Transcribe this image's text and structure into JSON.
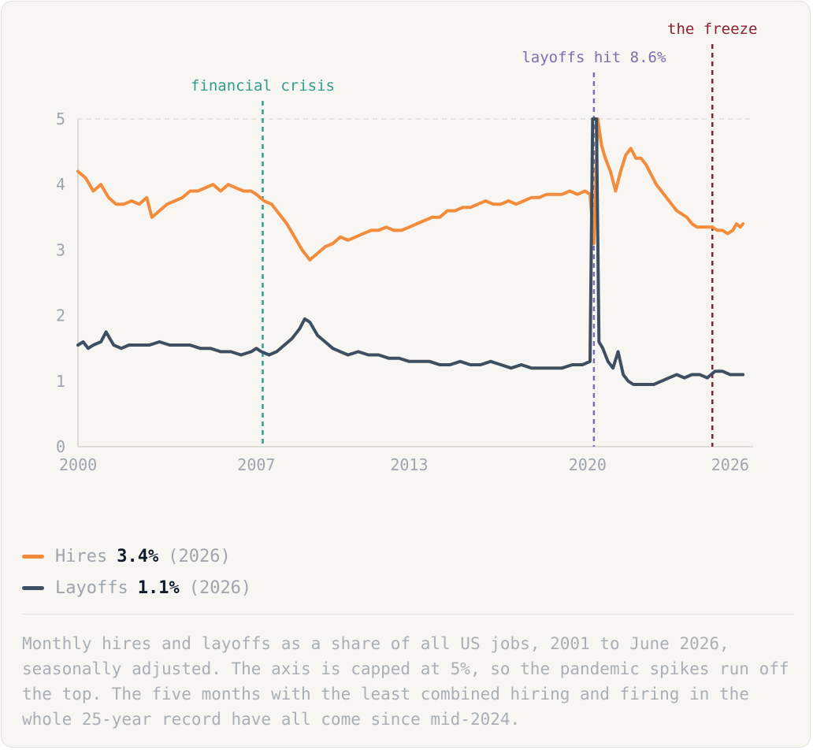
{
  "colors": {
    "hires": "#f38b3c",
    "layoffs": "#3d4f61",
    "financial_crisis": "#2e9e8b",
    "pandemic": "#7b6fb0",
    "freeze": "#8b2131",
    "axis_text": "#9ea5ae",
    "grid": "#dedbd4"
  },
  "legend": {
    "hires": {
      "name": "Hires",
      "value": "3.4%",
      "suffix": "(2026)"
    },
    "layoffs": {
      "name": "Layoffs",
      "value": "1.1%",
      "suffix": "(2026)"
    }
  },
  "caption": "Monthly hires and layoffs as a share of all US jobs, 2001 to June 2026, seasonally adjusted. The axis is capped at 5%, so the pandemic spikes run off the top. The five months with the least combined hiring and firing in the whole 25-year record have all come since mid-2024.",
  "chart_data": {
    "type": "line",
    "title": "",
    "xlabel": "",
    "ylabel": "",
    "xlim": [
      2000,
      2026.5
    ],
    "ylim": [
      0,
      5
    ],
    "x_ticks": [
      2000,
      2007,
      2013,
      2020,
      2026
    ],
    "y_ticks": [
      0,
      1,
      2,
      3,
      4,
      5
    ],
    "grid": "top line only",
    "annotations": [
      {
        "label": "financial crisis",
        "x": 2007.25,
        "color_key": "financial_crisis"
      },
      {
        "label": "layoffs hit 8.6%",
        "x": 2020.25,
        "color_key": "pandemic"
      },
      {
        "label": "the freeze",
        "x": 2024.9,
        "color_key": "freeze"
      }
    ],
    "series": [
      {
        "name": "Hires",
        "color_key": "hires",
        "points": [
          [
            2000.0,
            4.2
          ],
          [
            2000.3,
            4.1
          ],
          [
            2000.6,
            3.9
          ],
          [
            2000.9,
            4.0
          ],
          [
            2001.2,
            3.8
          ],
          [
            2001.5,
            3.7
          ],
          [
            2001.8,
            3.7
          ],
          [
            2002.1,
            3.75
          ],
          [
            2002.4,
            3.7
          ],
          [
            2002.7,
            3.8
          ],
          [
            2002.9,
            3.5
          ],
          [
            2003.2,
            3.6
          ],
          [
            2003.5,
            3.7
          ],
          [
            2003.8,
            3.75
          ],
          [
            2004.1,
            3.8
          ],
          [
            2004.4,
            3.9
          ],
          [
            2004.7,
            3.9
          ],
          [
            2005.0,
            3.95
          ],
          [
            2005.3,
            4.0
          ],
          [
            2005.6,
            3.9
          ],
          [
            2005.9,
            4.0
          ],
          [
            2006.2,
            3.95
          ],
          [
            2006.5,
            3.9
          ],
          [
            2006.8,
            3.9
          ],
          [
            2007.0,
            3.85
          ],
          [
            2007.3,
            3.75
          ],
          [
            2007.6,
            3.7
          ],
          [
            2007.9,
            3.55
          ],
          [
            2008.2,
            3.4
          ],
          [
            2008.5,
            3.2
          ],
          [
            2008.8,
            3.0
          ],
          [
            2009.1,
            2.85
          ],
          [
            2009.4,
            2.95
          ],
          [
            2009.7,
            3.05
          ],
          [
            2010.0,
            3.1
          ],
          [
            2010.3,
            3.2
          ],
          [
            2010.6,
            3.15
          ],
          [
            2010.9,
            3.2
          ],
          [
            2011.2,
            3.25
          ],
          [
            2011.5,
            3.3
          ],
          [
            2011.8,
            3.3
          ],
          [
            2012.1,
            3.35
          ],
          [
            2012.4,
            3.3
          ],
          [
            2012.7,
            3.3
          ],
          [
            2013.0,
            3.35
          ],
          [
            2013.3,
            3.4
          ],
          [
            2013.6,
            3.45
          ],
          [
            2013.9,
            3.5
          ],
          [
            2014.2,
            3.5
          ],
          [
            2014.5,
            3.6
          ],
          [
            2014.8,
            3.6
          ],
          [
            2015.1,
            3.65
          ],
          [
            2015.4,
            3.65
          ],
          [
            2015.7,
            3.7
          ],
          [
            2016.0,
            3.75
          ],
          [
            2016.3,
            3.7
          ],
          [
            2016.6,
            3.7
          ],
          [
            2016.9,
            3.75
          ],
          [
            2017.2,
            3.7
          ],
          [
            2017.5,
            3.75
          ],
          [
            2017.8,
            3.8
          ],
          [
            2018.1,
            3.8
          ],
          [
            2018.4,
            3.85
          ],
          [
            2018.7,
            3.85
          ],
          [
            2019.0,
            3.85
          ],
          [
            2019.3,
            3.9
          ],
          [
            2019.6,
            3.85
          ],
          [
            2019.9,
            3.9
          ],
          [
            2020.1,
            3.85
          ],
          [
            2020.25,
            3.1
          ],
          [
            2020.4,
            5.0
          ],
          [
            2020.55,
            4.6
          ],
          [
            2020.7,
            4.4
          ],
          [
            2020.9,
            4.2
          ],
          [
            2021.1,
            3.9
          ],
          [
            2021.3,
            4.2
          ],
          [
            2021.5,
            4.45
          ],
          [
            2021.7,
            4.55
          ],
          [
            2021.9,
            4.4
          ],
          [
            2022.1,
            4.4
          ],
          [
            2022.3,
            4.3
          ],
          [
            2022.5,
            4.15
          ],
          [
            2022.7,
            4.0
          ],
          [
            2022.9,
            3.9
          ],
          [
            2023.1,
            3.8
          ],
          [
            2023.3,
            3.7
          ],
          [
            2023.5,
            3.6
          ],
          [
            2023.7,
            3.55
          ],
          [
            2023.9,
            3.5
          ],
          [
            2024.1,
            3.4
          ],
          [
            2024.3,
            3.35
          ],
          [
            2024.5,
            3.35
          ],
          [
            2024.7,
            3.35
          ],
          [
            2024.9,
            3.35
          ],
          [
            2025.1,
            3.3
          ],
          [
            2025.3,
            3.3
          ],
          [
            2025.5,
            3.25
          ],
          [
            2025.7,
            3.3
          ],
          [
            2025.85,
            3.4
          ],
          [
            2026.0,
            3.35
          ],
          [
            2026.1,
            3.4
          ]
        ]
      },
      {
        "name": "Layoffs",
        "color_key": "layoffs",
        "points": [
          [
            2000.0,
            1.55
          ],
          [
            2000.2,
            1.6
          ],
          [
            2000.4,
            1.5
          ],
          [
            2000.6,
            1.55
          ],
          [
            2000.9,
            1.6
          ],
          [
            2001.1,
            1.75
          ],
          [
            2001.4,
            1.55
          ],
          [
            2001.7,
            1.5
          ],
          [
            2002.0,
            1.55
          ],
          [
            2002.4,
            1.55
          ],
          [
            2002.8,
            1.55
          ],
          [
            2003.2,
            1.6
          ],
          [
            2003.6,
            1.55
          ],
          [
            2004.0,
            1.55
          ],
          [
            2004.4,
            1.55
          ],
          [
            2004.8,
            1.5
          ],
          [
            2005.2,
            1.5
          ],
          [
            2005.6,
            1.45
          ],
          [
            2006.0,
            1.45
          ],
          [
            2006.4,
            1.4
          ],
          [
            2006.8,
            1.45
          ],
          [
            2007.0,
            1.5
          ],
          [
            2007.2,
            1.45
          ],
          [
            2007.5,
            1.4
          ],
          [
            2007.8,
            1.45
          ],
          [
            2008.1,
            1.55
          ],
          [
            2008.4,
            1.65
          ],
          [
            2008.7,
            1.8
          ],
          [
            2008.9,
            1.95
          ],
          [
            2009.1,
            1.9
          ],
          [
            2009.4,
            1.7
          ],
          [
            2009.7,
            1.6
          ],
          [
            2010.0,
            1.5
          ],
          [
            2010.3,
            1.45
          ],
          [
            2010.6,
            1.4
          ],
          [
            2011.0,
            1.45
          ],
          [
            2011.4,
            1.4
          ],
          [
            2011.8,
            1.4
          ],
          [
            2012.2,
            1.35
          ],
          [
            2012.6,
            1.35
          ],
          [
            2013.0,
            1.3
          ],
          [
            2013.4,
            1.3
          ],
          [
            2013.8,
            1.3
          ],
          [
            2014.2,
            1.25
          ],
          [
            2014.6,
            1.25
          ],
          [
            2015.0,
            1.3
          ],
          [
            2015.4,
            1.25
          ],
          [
            2015.8,
            1.25
          ],
          [
            2016.2,
            1.3
          ],
          [
            2016.6,
            1.25
          ],
          [
            2017.0,
            1.2
          ],
          [
            2017.4,
            1.25
          ],
          [
            2017.8,
            1.2
          ],
          [
            2018.2,
            1.2
          ],
          [
            2018.6,
            1.2
          ],
          [
            2019.0,
            1.2
          ],
          [
            2019.4,
            1.25
          ],
          [
            2019.8,
            1.25
          ],
          [
            2020.1,
            1.3
          ],
          [
            2020.2,
            5.0
          ],
          [
            2020.35,
            5.0
          ],
          [
            2020.45,
            1.6
          ],
          [
            2020.6,
            1.5
          ],
          [
            2020.8,
            1.3
          ],
          [
            2021.0,
            1.2
          ],
          [
            2021.2,
            1.45
          ],
          [
            2021.4,
            1.1
          ],
          [
            2021.6,
            1.0
          ],
          [
            2021.8,
            0.95
          ],
          [
            2022.0,
            0.95
          ],
          [
            2022.3,
            0.95
          ],
          [
            2022.6,
            0.95
          ],
          [
            2022.9,
            1.0
          ],
          [
            2023.2,
            1.05
          ],
          [
            2023.5,
            1.1
          ],
          [
            2023.8,
            1.05
          ],
          [
            2024.1,
            1.1
          ],
          [
            2024.4,
            1.1
          ],
          [
            2024.7,
            1.05
          ],
          [
            2025.0,
            1.15
          ],
          [
            2025.3,
            1.15
          ],
          [
            2025.6,
            1.1
          ],
          [
            2025.9,
            1.1
          ],
          [
            2026.1,
            1.1
          ]
        ]
      }
    ]
  }
}
